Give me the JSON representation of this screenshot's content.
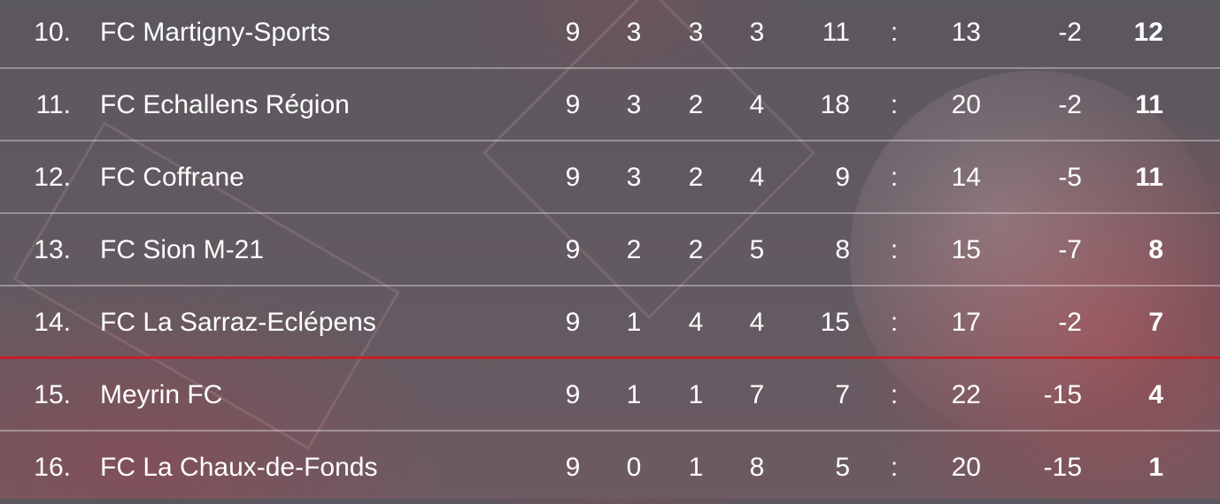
{
  "colors": {
    "relegation_line": "#c8202a",
    "text": "#ffffff"
  },
  "rows": [
    {
      "rank": "10.",
      "team": "FC Martigny-Sports",
      "played": "9",
      "won": "3",
      "drawn": "3",
      "lost": "3",
      "goals_for": "11",
      "sep": ":",
      "goals_against": "13",
      "diff": "-2",
      "points": "12"
    },
    {
      "rank": "11.",
      "team": "FC Echallens Région",
      "played": "9",
      "won": "3",
      "drawn": "2",
      "lost": "4",
      "goals_for": "18",
      "sep": ":",
      "goals_against": "20",
      "diff": "-2",
      "points": "11"
    },
    {
      "rank": "12.",
      "team": "FC Coffrane",
      "played": "9",
      "won": "3",
      "drawn": "2",
      "lost": "4",
      "goals_for": "9",
      "sep": ":",
      "goals_against": "14",
      "diff": "-5",
      "points": "11"
    },
    {
      "rank": "13.",
      "team": "FC Sion M-21",
      "played": "9",
      "won": "2",
      "drawn": "2",
      "lost": "5",
      "goals_for": "8",
      "sep": ":",
      "goals_against": "15",
      "diff": "-7",
      "points": "8"
    },
    {
      "rank": "14.",
      "team": "FC La Sarraz-Eclépens",
      "played": "9",
      "won": "1",
      "drawn": "4",
      "lost": "4",
      "goals_for": "15",
      "sep": ":",
      "goals_against": "17",
      "diff": "-2",
      "points": "7"
    },
    {
      "rank": "15.",
      "team": "Meyrin FC",
      "played": "9",
      "won": "1",
      "drawn": "1",
      "lost": "7",
      "goals_for": "7",
      "sep": ":",
      "goals_against": "22",
      "diff": "-15",
      "points": "4"
    },
    {
      "rank": "16.",
      "team": "FC La Chaux-de-Fonds",
      "played": "9",
      "won": "0",
      "drawn": "1",
      "lost": "8",
      "goals_for": "5",
      "sep": ":",
      "goals_against": "20",
      "diff": "-15",
      "points": "1"
    }
  ]
}
